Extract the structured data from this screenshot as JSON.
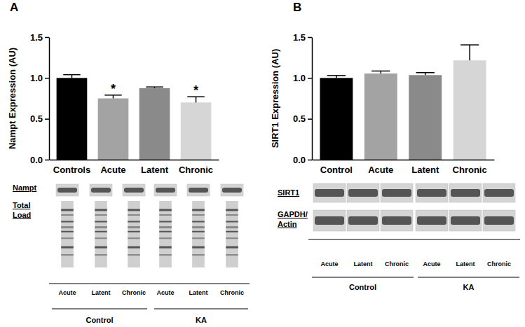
{
  "chart_data": [
    {
      "type": "bar",
      "title": "A",
      "categories": [
        "Controls",
        "Acute",
        "Latent",
        "Chronic"
      ],
      "values": [
        1.0,
        0.75,
        0.875,
        0.7
      ],
      "errors": [
        0.04,
        0.04,
        0.015,
        0.07
      ],
      "colors": [
        "#000000",
        "#a3a3a3",
        "#8a8a8a",
        "#d6d6d6"
      ],
      "y_label": "Nampt Expression (AU)",
      "ylim": [
        0,
        1.5
      ],
      "yticks": [
        {
          "value": 0,
          "label": "0.0"
        },
        {
          "value": 0.5,
          "label": "0.5"
        },
        {
          "value": 1,
          "label": "1.0"
        },
        {
          "value": 1.5,
          "label": "1.5"
        }
      ],
      "annotations": [
        {
          "x": "Acute",
          "text": "*"
        },
        {
          "x": "Chronic",
          "text": "*"
        }
      ]
    },
    {
      "type": "bar",
      "title": "B",
      "categories": [
        "Control",
        "Acute",
        "Latent",
        "Chronic"
      ],
      "values": [
        1.0,
        1.055,
        1.035,
        1.215
      ],
      "errors": [
        0.03,
        0.03,
        0.03,
        0.19
      ],
      "colors": [
        "#000000",
        "#a3a3a3",
        "#8a8a8a",
        "#d6d6d6"
      ],
      "y_label": "SIRT1 Expression (AU)",
      "ylim": [
        0,
        1.5
      ],
      "yticks": [
        {
          "value": 0,
          "label": "0.0"
        },
        {
          "value": 0.5,
          "label": "0.5"
        },
        {
          "value": 1,
          "label": "1.0"
        },
        {
          "value": 1.5,
          "label": "1.5"
        }
      ]
    }
  ],
  "blots": [
    {
      "rows": [
        "Nampt",
        "Total Load"
      ],
      "lanes": [
        "Acute",
        "Latent",
        "Chronic",
        "Acute",
        "Latent",
        "Chronic"
      ],
      "groups": [
        "Control",
        "KA"
      ]
    },
    {
      "rows": [
        "SIRT1",
        "GAPDH/ Actin"
      ],
      "lanes": [
        "Acute",
        "Latent",
        "Chronic",
        "Acute",
        "Latent",
        "Chronic"
      ],
      "groups": [
        "Control",
        "KA"
      ]
    }
  ]
}
